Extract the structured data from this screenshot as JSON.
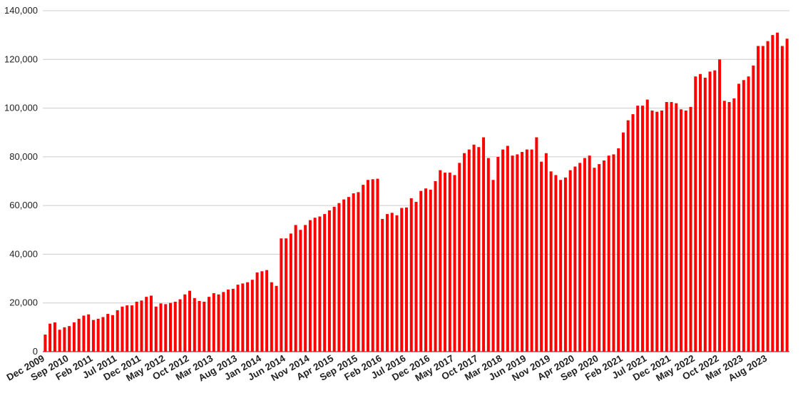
{
  "chart_data": {
    "type": "bar",
    "color": "#ff0000",
    "grid": true,
    "categories": [
      "Dec 2009",
      null,
      null,
      null,
      null,
      "Sep 2010",
      null,
      null,
      null,
      null,
      "Feb 2011",
      null,
      null,
      null,
      null,
      "Jul 2011",
      null,
      null,
      null,
      null,
      "Dec 2011",
      null,
      null,
      null,
      null,
      "May 2012",
      null,
      null,
      null,
      null,
      "Oct 2012",
      null,
      null,
      null,
      null,
      "Mar 2013",
      null,
      null,
      null,
      null,
      "Aug 2013",
      null,
      null,
      null,
      null,
      "Jan 2014",
      null,
      null,
      null,
      null,
      "Jun 2014",
      null,
      null,
      null,
      null,
      "Nov 2014",
      null,
      null,
      null,
      null,
      "Apr 2015",
      null,
      null,
      null,
      null,
      "Sep 2015",
      null,
      null,
      null,
      null,
      "Feb 2016",
      null,
      null,
      null,
      null,
      "Jul 2016",
      null,
      null,
      null,
      null,
      "Dec 2016",
      null,
      null,
      null,
      null,
      "May 2017",
      null,
      null,
      null,
      null,
      "Oct 2017",
      null,
      null,
      null,
      null,
      "Mar 2018",
      null,
      null,
      null,
      null,
      "Jun 2019",
      null,
      null,
      null,
      null,
      "Nov 2019",
      null,
      null,
      null,
      null,
      "Apr 2020",
      null,
      null,
      null,
      null,
      "Sep 2020",
      null,
      null,
      null,
      null,
      "Feb 2021",
      null,
      null,
      null,
      null,
      "Jul 2021",
      null,
      null,
      null,
      null,
      "Dec 2021",
      null,
      null,
      null,
      null,
      "May 2022",
      null,
      null,
      null,
      null,
      "Oct 2022",
      null,
      null,
      null,
      null,
      "Mar 2023",
      null,
      null,
      null,
      null,
      "Aug 2023",
      null,
      null,
      null,
      null
    ],
    "values": [
      7000,
      11500,
      12000,
      9000,
      10000,
      10500,
      12000,
      13500,
      14800,
      15300,
      13000,
      13500,
      14200,
      15500,
      15000,
      17000,
      18500,
      19000,
      19000,
      20500,
      21000,
      22500,
      23000,
      18500,
      19800,
      19500,
      20000,
      20500,
      21500,
      23500,
      25000,
      22000,
      20800,
      20500,
      22500,
      24000,
      23500,
      24500,
      25500,
      25800,
      27500,
      28000,
      28500,
      29500,
      32500,
      33000,
      33500,
      28500,
      27000,
      46500,
      46500,
      48500,
      52000,
      50000,
      52000,
      54000,
      55000,
      55500,
      56500,
      58000,
      59500,
      61000,
      62500,
      63500,
      65000,
      65500,
      68500,
      70500,
      70800,
      71000,
      54500,
      56500,
      57000,
      56000,
      59000,
      59200,
      63000,
      61500,
      66000,
      67000,
      66500,
      70000,
      74500,
      73500,
      73500,
      72500,
      77500,
      81500,
      83000,
      85000,
      84000,
      88000,
      79500,
      70500,
      80000,
      83000,
      84500,
      80500,
      81000,
      82000,
      83000,
      83000,
      88000,
      78000,
      81500,
      74000,
      72500,
      70500,
      71500,
      74500,
      76000,
      77500,
      79500,
      80500,
      75500,
      77000,
      78500,
      80500,
      81000,
      83500,
      90000,
      95000,
      97500,
      101000,
      101000,
      103500,
      99000,
      98500,
      99000,
      102500,
      102500,
      102000,
      99500,
      99000,
      100500,
      113000,
      114000,
      112500,
      115000,
      115500,
      120000,
      103000,
      102500,
      104000,
      110000,
      111500,
      113000,
      117500,
      125500,
      125500,
      127500,
      130000,
      131000,
      125500,
      128500
    ],
    "ylim": [
      0,
      140000
    ],
    "yticks": [
      0,
      {
        "value": 20000,
        "label": "20,000"
      },
      {
        "value": 40000,
        "label": "40,000"
      },
      {
        "value": 60000,
        "label": "60,000"
      },
      {
        "value": 80000,
        "label": "80,000"
      },
      {
        "value": 100000,
        "label": "100,000"
      },
      {
        "value": 120000,
        "label": "120,000"
      },
      {
        "value": 140000,
        "label": "140,000"
      }
    ]
  }
}
